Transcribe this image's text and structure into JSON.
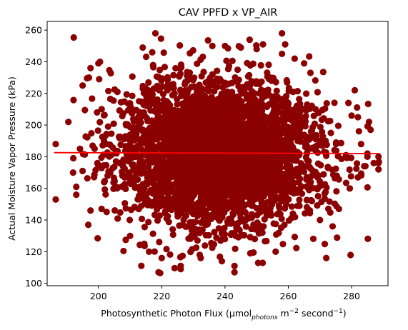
{
  "chart_data": {
    "type": "scatter",
    "title": "CAV PPFD x VP_AIR",
    "xlabel": {
      "main": "Photosynthetic Photon Flux (μmol",
      "sub": "photons",
      "m": " m",
      "exp1": "−2",
      "second": " second",
      "exp2": "−1",
      "close": ")"
    },
    "ylabel": "Actual Moisture Vapor Pressure (kPa)",
    "xlim": [
      183.8,
      291.5
    ],
    "ylim": [
      98.5,
      265.5
    ],
    "xticks": [
      200,
      220,
      240,
      260,
      280
    ],
    "yticks": [
      100,
      120,
      140,
      160,
      180,
      200,
      220,
      240,
      260
    ],
    "grid": false,
    "point_color": "#8b0000",
    "line_color": "#ff0000",
    "trend_line": {
      "x": [
        186,
        289
      ],
      "y": [
        182.6,
        182.0
      ]
    },
    "cloud": {
      "x_mean": 238,
      "x_sd": 15.5,
      "y_mean": 182.5,
      "y_sd": 23,
      "n": 3800,
      "x_range": [
        186,
        289
      ],
      "y_range": [
        106,
        258
      ]
    },
    "points": [
      {
        "x": 186.5,
        "y": 188
      },
      {
        "x": 186.5,
        "y": 153
      },
      {
        "x": 190.5,
        "y": 202
      },
      {
        "x": 192,
        "y": 170
      },
      {
        "x": 193,
        "y": 161
      },
      {
        "x": 193,
        "y": 156
      },
      {
        "x": 195,
        "y": 225
      },
      {
        "x": 195,
        "y": 171
      },
      {
        "x": 197,
        "y": 230
      },
      {
        "x": 197.5,
        "y": 236
      },
      {
        "x": 197.5,
        "y": 146
      },
      {
        "x": 200.5,
        "y": 240
      },
      {
        "x": 200,
        "y": 239
      },
      {
        "x": 206,
        "y": 221
      },
      {
        "x": 210,
        "y": 130
      },
      {
        "x": 214,
        "y": 249
      },
      {
        "x": 214.5,
        "y": 125
      },
      {
        "x": 216,
        "y": 120
      },
      {
        "x": 217,
        "y": 246
      },
      {
        "x": 218,
        "y": 258
      },
      {
        "x": 219,
        "y": 107
      },
      {
        "x": 219.5,
        "y": 106.5
      },
      {
        "x": 220,
        "y": 116
      },
      {
        "x": 226,
        "y": 111
      },
      {
        "x": 226,
        "y": 109
      },
      {
        "x": 232,
        "y": 118
      },
      {
        "x": 236,
        "y": 250
      },
      {
        "x": 239,
        "y": 114
      },
      {
        "x": 240,
        "y": 250
      },
      {
        "x": 243,
        "y": 111
      },
      {
        "x": 243,
        "y": 107
      },
      {
        "x": 245,
        "y": 249
      },
      {
        "x": 248,
        "y": 119
      },
      {
        "x": 250,
        "y": 248
      },
      {
        "x": 252,
        "y": 251
      },
      {
        "x": 256,
        "y": 120
      },
      {
        "x": 258,
        "y": 245
      },
      {
        "x": 258,
        "y": 258
      },
      {
        "x": 259,
        "y": 251
      },
      {
        "x": 262,
        "y": 242
      },
      {
        "x": 265,
        "y": 239
      },
      {
        "x": 267,
        "y": 233
      },
      {
        "x": 270,
        "y": 140
      },
      {
        "x": 272,
        "y": 116
      },
      {
        "x": 274,
        "y": 136
      },
      {
        "x": 276,
        "y": 147
      },
      {
        "x": 279,
        "y": 214
      },
      {
        "x": 280,
        "y": 206
      },
      {
        "x": 281,
        "y": 222
      },
      {
        "x": 282,
        "y": 205
      },
      {
        "x": 282,
        "y": 167
      },
      {
        "x": 283,
        "y": 188
      },
      {
        "x": 285,
        "y": 180
      },
      {
        "x": 286,
        "y": 197
      },
      {
        "x": 287,
        "y": 176
      },
      {
        "x": 288.5,
        "y": 180
      },
      {
        "x": 288.5,
        "y": 172
      },
      {
        "x": 288.5,
        "y": 176
      },
      {
        "x": 285.5,
        "y": 202
      },
      {
        "x": 285,
        "y": 182
      },
      {
        "x": 284,
        "y": 174
      }
    ]
  }
}
